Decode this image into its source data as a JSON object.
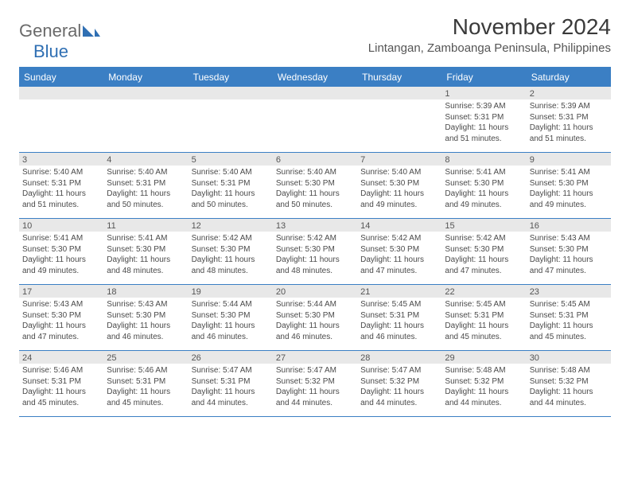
{
  "logo": {
    "text1": "General",
    "text2": "Blue",
    "shape_color": "#2f6fb3"
  },
  "title": "November 2024",
  "location": "Lintangan, Zamboanga Peninsula, Philippines",
  "colors": {
    "header_bg": "#3b7fc4",
    "header_text": "#ffffff",
    "rule": "#3b7fc4",
    "daynum_bg": "#e8e8e8",
    "text": "#4a4a4a"
  },
  "weekdays": [
    "Sunday",
    "Monday",
    "Tuesday",
    "Wednesday",
    "Thursday",
    "Friday",
    "Saturday"
  ],
  "weeks": [
    [
      {
        "num": "",
        "sunrise": "",
        "sunset": "",
        "daylight": ""
      },
      {
        "num": "",
        "sunrise": "",
        "sunset": "",
        "daylight": ""
      },
      {
        "num": "",
        "sunrise": "",
        "sunset": "",
        "daylight": ""
      },
      {
        "num": "",
        "sunrise": "",
        "sunset": "",
        "daylight": ""
      },
      {
        "num": "",
        "sunrise": "",
        "sunset": "",
        "daylight": ""
      },
      {
        "num": "1",
        "sunrise": "Sunrise: 5:39 AM",
        "sunset": "Sunset: 5:31 PM",
        "daylight": "Daylight: 11 hours and 51 minutes."
      },
      {
        "num": "2",
        "sunrise": "Sunrise: 5:39 AM",
        "sunset": "Sunset: 5:31 PM",
        "daylight": "Daylight: 11 hours and 51 minutes."
      }
    ],
    [
      {
        "num": "3",
        "sunrise": "Sunrise: 5:40 AM",
        "sunset": "Sunset: 5:31 PM",
        "daylight": "Daylight: 11 hours and 51 minutes."
      },
      {
        "num": "4",
        "sunrise": "Sunrise: 5:40 AM",
        "sunset": "Sunset: 5:31 PM",
        "daylight": "Daylight: 11 hours and 50 minutes."
      },
      {
        "num": "5",
        "sunrise": "Sunrise: 5:40 AM",
        "sunset": "Sunset: 5:31 PM",
        "daylight": "Daylight: 11 hours and 50 minutes."
      },
      {
        "num": "6",
        "sunrise": "Sunrise: 5:40 AM",
        "sunset": "Sunset: 5:30 PM",
        "daylight": "Daylight: 11 hours and 50 minutes."
      },
      {
        "num": "7",
        "sunrise": "Sunrise: 5:40 AM",
        "sunset": "Sunset: 5:30 PM",
        "daylight": "Daylight: 11 hours and 49 minutes."
      },
      {
        "num": "8",
        "sunrise": "Sunrise: 5:41 AM",
        "sunset": "Sunset: 5:30 PM",
        "daylight": "Daylight: 11 hours and 49 minutes."
      },
      {
        "num": "9",
        "sunrise": "Sunrise: 5:41 AM",
        "sunset": "Sunset: 5:30 PM",
        "daylight": "Daylight: 11 hours and 49 minutes."
      }
    ],
    [
      {
        "num": "10",
        "sunrise": "Sunrise: 5:41 AM",
        "sunset": "Sunset: 5:30 PM",
        "daylight": "Daylight: 11 hours and 49 minutes."
      },
      {
        "num": "11",
        "sunrise": "Sunrise: 5:41 AM",
        "sunset": "Sunset: 5:30 PM",
        "daylight": "Daylight: 11 hours and 48 minutes."
      },
      {
        "num": "12",
        "sunrise": "Sunrise: 5:42 AM",
        "sunset": "Sunset: 5:30 PM",
        "daylight": "Daylight: 11 hours and 48 minutes."
      },
      {
        "num": "13",
        "sunrise": "Sunrise: 5:42 AM",
        "sunset": "Sunset: 5:30 PM",
        "daylight": "Daylight: 11 hours and 48 minutes."
      },
      {
        "num": "14",
        "sunrise": "Sunrise: 5:42 AM",
        "sunset": "Sunset: 5:30 PM",
        "daylight": "Daylight: 11 hours and 47 minutes."
      },
      {
        "num": "15",
        "sunrise": "Sunrise: 5:42 AM",
        "sunset": "Sunset: 5:30 PM",
        "daylight": "Daylight: 11 hours and 47 minutes."
      },
      {
        "num": "16",
        "sunrise": "Sunrise: 5:43 AM",
        "sunset": "Sunset: 5:30 PM",
        "daylight": "Daylight: 11 hours and 47 minutes."
      }
    ],
    [
      {
        "num": "17",
        "sunrise": "Sunrise: 5:43 AM",
        "sunset": "Sunset: 5:30 PM",
        "daylight": "Daylight: 11 hours and 47 minutes."
      },
      {
        "num": "18",
        "sunrise": "Sunrise: 5:43 AM",
        "sunset": "Sunset: 5:30 PM",
        "daylight": "Daylight: 11 hours and 46 minutes."
      },
      {
        "num": "19",
        "sunrise": "Sunrise: 5:44 AM",
        "sunset": "Sunset: 5:30 PM",
        "daylight": "Daylight: 11 hours and 46 minutes."
      },
      {
        "num": "20",
        "sunrise": "Sunrise: 5:44 AM",
        "sunset": "Sunset: 5:30 PM",
        "daylight": "Daylight: 11 hours and 46 minutes."
      },
      {
        "num": "21",
        "sunrise": "Sunrise: 5:45 AM",
        "sunset": "Sunset: 5:31 PM",
        "daylight": "Daylight: 11 hours and 46 minutes."
      },
      {
        "num": "22",
        "sunrise": "Sunrise: 5:45 AM",
        "sunset": "Sunset: 5:31 PM",
        "daylight": "Daylight: 11 hours and 45 minutes."
      },
      {
        "num": "23",
        "sunrise": "Sunrise: 5:45 AM",
        "sunset": "Sunset: 5:31 PM",
        "daylight": "Daylight: 11 hours and 45 minutes."
      }
    ],
    [
      {
        "num": "24",
        "sunrise": "Sunrise: 5:46 AM",
        "sunset": "Sunset: 5:31 PM",
        "daylight": "Daylight: 11 hours and 45 minutes."
      },
      {
        "num": "25",
        "sunrise": "Sunrise: 5:46 AM",
        "sunset": "Sunset: 5:31 PM",
        "daylight": "Daylight: 11 hours and 45 minutes."
      },
      {
        "num": "26",
        "sunrise": "Sunrise: 5:47 AM",
        "sunset": "Sunset: 5:31 PM",
        "daylight": "Daylight: 11 hours and 44 minutes."
      },
      {
        "num": "27",
        "sunrise": "Sunrise: 5:47 AM",
        "sunset": "Sunset: 5:32 PM",
        "daylight": "Daylight: 11 hours and 44 minutes."
      },
      {
        "num": "28",
        "sunrise": "Sunrise: 5:47 AM",
        "sunset": "Sunset: 5:32 PM",
        "daylight": "Daylight: 11 hours and 44 minutes."
      },
      {
        "num": "29",
        "sunrise": "Sunrise: 5:48 AM",
        "sunset": "Sunset: 5:32 PM",
        "daylight": "Daylight: 11 hours and 44 minutes."
      },
      {
        "num": "30",
        "sunrise": "Sunrise: 5:48 AM",
        "sunset": "Sunset: 5:32 PM",
        "daylight": "Daylight: 11 hours and 44 minutes."
      }
    ]
  ]
}
